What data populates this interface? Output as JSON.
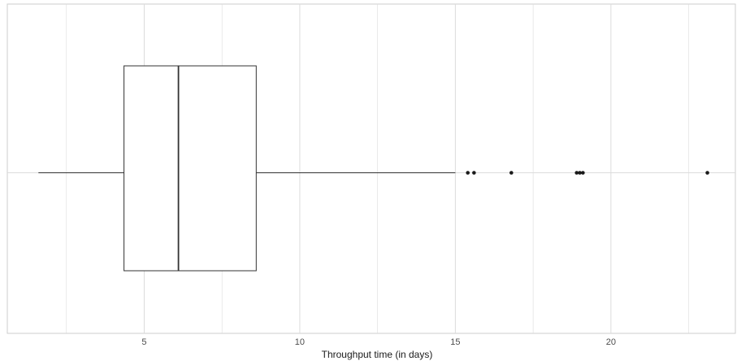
{
  "chart_data": {
    "type": "boxplot",
    "orientation": "horizontal",
    "xlabel": "Throughput time (in days)",
    "ylabel": "",
    "xlim": [
      0.6,
      24.0
    ],
    "x_ticks": [
      5,
      10,
      15,
      20
    ],
    "x_minor_gridlines": [
      2.5,
      7.5,
      12.5,
      17.5,
      22.5
    ],
    "grid": true,
    "box": {
      "whisker_low": 1.6,
      "q1": 4.35,
      "median": 6.1,
      "q3": 8.6,
      "whisker_high": 15.0
    },
    "outliers": [
      15.4,
      15.6,
      16.8,
      18.9,
      19.0,
      19.1,
      23.1
    ],
    "colors": {
      "box_fill": "#ffffff",
      "box_stroke": "#333333",
      "grid": "#dcdcdc",
      "outlier": "#1a1a1a"
    }
  }
}
